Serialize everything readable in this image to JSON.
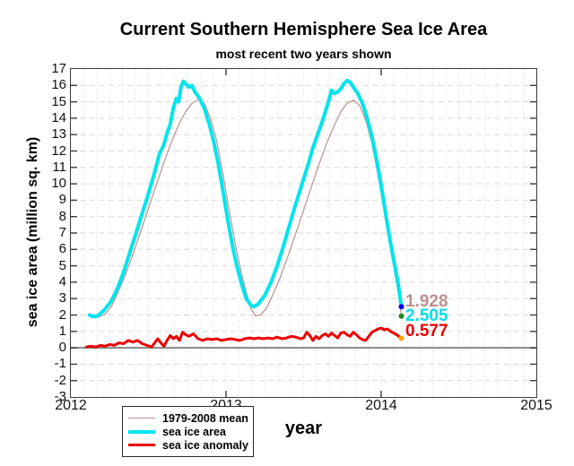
{
  "header": {
    "title": "Current Southern Hemisphere Sea Ice Area",
    "subtitle": "most recent two years shown"
  },
  "axes": {
    "xlabel": "year",
    "ylabel": "sea ice area (million sq. km)"
  },
  "annotations": [
    {
      "text": "1.928",
      "color": "#bc8f8f"
    },
    {
      "text": "2.505",
      "color": "#00dfe8"
    },
    {
      "text": "0.577",
      "color": "#ee0000"
    }
  ],
  "colors": {
    "frame": "#3c3c3c",
    "zero_line": "#878787",
    "grid": "#d9d9d9",
    "mean_line": "#bc8f8f",
    "area_line": "#00e4ee",
    "anomaly_line": "#ee0000",
    "end_dot_mean": "#228b22",
    "end_dot_area": "#0000ee",
    "end_dot_anomaly": "#ffa500"
  },
  "chart_data": {
    "type": "line",
    "title": "Current Southern Hemisphere Sea Ice Area",
    "subtitle": "most recent two years shown",
    "xlabel": "year",
    "ylabel": "sea ice area (million sq. km)",
    "xlim": [
      2012,
      2015
    ],
    "ylim": [
      -3,
      17
    ],
    "x_ticks": [
      2012,
      2013,
      2014,
      2015
    ],
    "y_tick_step": 1,
    "grid": {
      "vertical": "monthly, dotted",
      "horizontal": "every 1 unit, dashed",
      "zero_line": "solid gray"
    },
    "legend_position": "bottom-left, below axis",
    "series": [
      {
        "name": "1979-2008 mean",
        "color": "#bc8f8f",
        "width": 1.2,
        "end_value": 1.928,
        "end_marker_color": "#228b22",
        "points": [
          [
            2012.12,
            2.1
          ],
          [
            2012.15,
            1.92
          ],
          [
            2012.18,
            1.88
          ],
          [
            2012.22,
            2.05
          ],
          [
            2012.26,
            2.5
          ],
          [
            2012.3,
            3.3
          ],
          [
            2012.35,
            4.4
          ],
          [
            2012.4,
            5.7
          ],
          [
            2012.45,
            7.1
          ],
          [
            2012.5,
            8.5
          ],
          [
            2012.55,
            9.9
          ],
          [
            2012.6,
            11.3
          ],
          [
            2012.65,
            12.6
          ],
          [
            2012.7,
            13.7
          ],
          [
            2012.74,
            14.4
          ],
          [
            2012.78,
            14.9
          ],
          [
            2012.82,
            15.15
          ],
          [
            2012.86,
            14.9
          ],
          [
            2012.9,
            14.0
          ],
          [
            2012.94,
            12.6
          ],
          [
            2012.98,
            10.6
          ],
          [
            2013.02,
            8.4
          ],
          [
            2013.06,
            6.3
          ],
          [
            2013.1,
            4.5
          ],
          [
            2013.13,
            3.4
          ],
          [
            2013.16,
            2.4
          ],
          [
            2013.19,
            1.95
          ],
          [
            2013.22,
            2.0
          ],
          [
            2013.26,
            2.4
          ],
          [
            2013.3,
            3.2
          ],
          [
            2013.35,
            4.3
          ],
          [
            2013.4,
            5.6
          ],
          [
            2013.45,
            7.0
          ],
          [
            2013.5,
            8.4
          ],
          [
            2013.55,
            9.8
          ],
          [
            2013.6,
            11.2
          ],
          [
            2013.65,
            12.5
          ],
          [
            2013.7,
            13.6
          ],
          [
            2013.74,
            14.4
          ],
          [
            2013.78,
            14.9
          ],
          [
            2013.82,
            15.1
          ],
          [
            2013.86,
            14.8
          ],
          [
            2013.9,
            13.9
          ],
          [
            2013.94,
            12.5
          ],
          [
            2013.98,
            10.5
          ],
          [
            2014.02,
            8.3
          ],
          [
            2014.05,
            6.6
          ],
          [
            2014.08,
            5.0
          ],
          [
            2014.1,
            3.9
          ],
          [
            2014.12,
            2.8
          ],
          [
            2014.13,
            1.928
          ]
        ]
      },
      {
        "name": "sea ice area",
        "color": "#00e4ee",
        "width": 4,
        "end_value": 2.505,
        "end_marker_color": "#0000ee",
        "points": [
          [
            2012.12,
            2.0
          ],
          [
            2012.14,
            1.92
          ],
          [
            2012.16,
            1.9
          ],
          [
            2012.18,
            2.0
          ],
          [
            2012.22,
            2.35
          ],
          [
            2012.26,
            2.85
          ],
          [
            2012.3,
            3.6
          ],
          [
            2012.34,
            4.6
          ],
          [
            2012.38,
            5.8
          ],
          [
            2012.42,
            7.0
          ],
          [
            2012.46,
            8.2
          ],
          [
            2012.5,
            9.4
          ],
          [
            2012.54,
            10.7
          ],
          [
            2012.57,
            11.8
          ],
          [
            2012.6,
            12.4
          ],
          [
            2012.62,
            13.1
          ],
          [
            2012.64,
            13.6
          ],
          [
            2012.66,
            14.6
          ],
          [
            2012.68,
            15.2
          ],
          [
            2012.695,
            15.0
          ],
          [
            2012.71,
            15.9
          ],
          [
            2012.725,
            16.25
          ],
          [
            2012.74,
            16.1
          ],
          [
            2012.76,
            15.9
          ],
          [
            2012.78,
            16.0
          ],
          [
            2012.8,
            15.6
          ],
          [
            2012.83,
            15.2
          ],
          [
            2012.86,
            14.6
          ],
          [
            2012.89,
            13.7
          ],
          [
            2012.92,
            12.6
          ],
          [
            2012.95,
            11.2
          ],
          [
            2012.98,
            9.6
          ],
          [
            2013.01,
            7.9
          ],
          [
            2013.04,
            6.3
          ],
          [
            2013.07,
            5.0
          ],
          [
            2013.1,
            3.9
          ],
          [
            2013.13,
            3.0
          ],
          [
            2013.16,
            2.6
          ],
          [
            2013.18,
            2.5
          ],
          [
            2013.21,
            2.7
          ],
          [
            2013.25,
            3.2
          ],
          [
            2013.29,
            4.0
          ],
          [
            2013.33,
            5.0
          ],
          [
            2013.37,
            6.2
          ],
          [
            2013.41,
            7.5
          ],
          [
            2013.45,
            8.8
          ],
          [
            2013.49,
            10.0
          ],
          [
            2013.53,
            11.2
          ],
          [
            2013.56,
            12.2
          ],
          [
            2013.59,
            13.0
          ],
          [
            2013.62,
            13.8
          ],
          [
            2013.64,
            14.4
          ],
          [
            2013.66,
            15.0
          ],
          [
            2013.68,
            15.7
          ],
          [
            2013.7,
            15.5
          ],
          [
            2013.72,
            15.6
          ],
          [
            2013.74,
            15.8
          ],
          [
            2013.76,
            16.1
          ],
          [
            2013.78,
            16.3
          ],
          [
            2013.8,
            16.2
          ],
          [
            2013.82,
            15.9
          ],
          [
            2013.85,
            15.5
          ],
          [
            2013.88,
            14.9
          ],
          [
            2013.91,
            14.0
          ],
          [
            2013.94,
            12.9
          ],
          [
            2013.97,
            11.5
          ],
          [
            2014.0,
            9.9
          ],
          [
            2014.03,
            8.1
          ],
          [
            2014.06,
            6.4
          ],
          [
            2014.09,
            4.9
          ],
          [
            2014.11,
            3.9
          ],
          [
            2014.13,
            2.505
          ]
        ]
      },
      {
        "name": "sea ice anomaly",
        "color": "#ee0000",
        "width": 3,
        "end_value": 0.577,
        "end_marker_color": "#ffa500",
        "points": [
          [
            2012.1,
            0.05
          ],
          [
            2012.13,
            0.1
          ],
          [
            2012.16,
            0.05
          ],
          [
            2012.19,
            0.15
          ],
          [
            2012.22,
            0.1
          ],
          [
            2012.25,
            0.2
          ],
          [
            2012.28,
            0.15
          ],
          [
            2012.31,
            0.3
          ],
          [
            2012.34,
            0.25
          ],
          [
            2012.37,
            0.45
          ],
          [
            2012.4,
            0.35
          ],
          [
            2012.43,
            0.45
          ],
          [
            2012.46,
            0.25
          ],
          [
            2012.49,
            0.15
          ],
          [
            2012.52,
            0.05
          ],
          [
            2012.54,
            0.3
          ],
          [
            2012.56,
            0.55
          ],
          [
            2012.58,
            0.3
          ],
          [
            2012.6,
            0.1
          ],
          [
            2012.62,
            0.45
          ],
          [
            2012.64,
            0.75
          ],
          [
            2012.66,
            0.55
          ],
          [
            2012.68,
            0.7
          ],
          [
            2012.7,
            0.45
          ],
          [
            2012.72,
            0.95
          ],
          [
            2012.74,
            0.8
          ],
          [
            2012.76,
            0.7
          ],
          [
            2012.79,
            0.85
          ],
          [
            2012.82,
            0.55
          ],
          [
            2012.85,
            0.45
          ],
          [
            2012.88,
            0.55
          ],
          [
            2012.91,
            0.5
          ],
          [
            2012.94,
            0.55
          ],
          [
            2012.97,
            0.45
          ],
          [
            2013.0,
            0.5
          ],
          [
            2013.03,
            0.55
          ],
          [
            2013.06,
            0.5
          ],
          [
            2013.09,
            0.45
          ],
          [
            2013.12,
            0.55
          ],
          [
            2013.15,
            0.6
          ],
          [
            2013.18,
            0.55
          ],
          [
            2013.21,
            0.6
          ],
          [
            2013.24,
            0.55
          ],
          [
            2013.27,
            0.6
          ],
          [
            2013.3,
            0.55
          ],
          [
            2013.33,
            0.65
          ],
          [
            2013.36,
            0.55
          ],
          [
            2013.39,
            0.6
          ],
          [
            2013.42,
            0.7
          ],
          [
            2013.45,
            0.65
          ],
          [
            2013.48,
            0.55
          ],
          [
            2013.5,
            0.6
          ],
          [
            2013.52,
            0.95
          ],
          [
            2013.54,
            0.75
          ],
          [
            2013.56,
            0.45
          ],
          [
            2013.58,
            0.7
          ],
          [
            2013.6,
            0.55
          ],
          [
            2013.62,
            0.75
          ],
          [
            2013.64,
            0.85
          ],
          [
            2013.66,
            0.7
          ],
          [
            2013.68,
            0.9
          ],
          [
            2013.7,
            0.75
          ],
          [
            2013.72,
            0.6
          ],
          [
            2013.74,
            0.9
          ],
          [
            2013.76,
            0.95
          ],
          [
            2013.78,
            0.8
          ],
          [
            2013.8,
            0.7
          ],
          [
            2013.82,
            0.95
          ],
          [
            2013.84,
            0.8
          ],
          [
            2013.86,
            0.6
          ],
          [
            2013.88,
            0.5
          ],
          [
            2013.9,
            0.45
          ],
          [
            2013.92,
            0.7
          ],
          [
            2013.94,
            0.95
          ],
          [
            2013.96,
            1.05
          ],
          [
            2013.98,
            1.15
          ],
          [
            2014.0,
            1.2
          ],
          [
            2014.02,
            1.1
          ],
          [
            2014.04,
            1.15
          ],
          [
            2014.06,
            1.0
          ],
          [
            2014.08,
            0.9
          ],
          [
            2014.1,
            0.8
          ],
          [
            2014.12,
            0.65
          ],
          [
            2014.13,
            0.577
          ]
        ]
      }
    ]
  }
}
